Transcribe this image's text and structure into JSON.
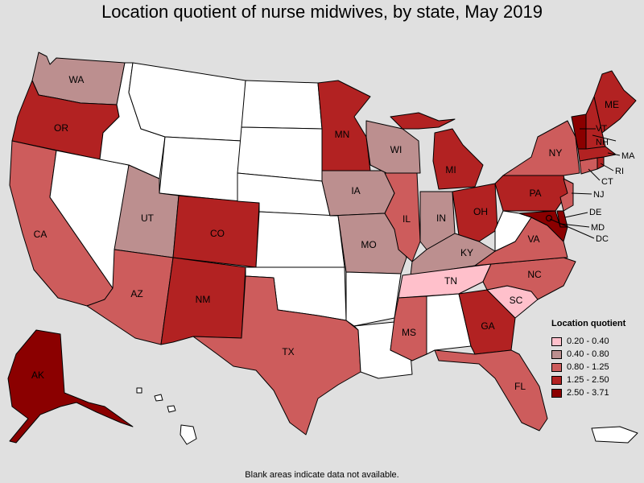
{
  "title": "Location quotient of nurse midwives, by state, May 2019",
  "footnote": "Blank areas indicate data not available.",
  "legend": {
    "title": "Location quotient",
    "classes": [
      {
        "label": "0.20 - 0.40",
        "color": "#ffc0cb"
      },
      {
        "label": "0.40 - 0.80",
        "color": "#bc8f8f"
      },
      {
        "label": "0.80 - 1.25",
        "color": "#cd5c5c"
      },
      {
        "label": "1.25 - 2.50",
        "color": "#b22222"
      },
      {
        "label": "2.50 - 3.71",
        "color": "#8b0000"
      }
    ],
    "blank_color": "#ffffff"
  },
  "states": {
    "WA": {
      "label": "WA",
      "class": 1
    },
    "OR": {
      "label": "OR",
      "class": 3
    },
    "CA": {
      "label": "CA",
      "class": 2
    },
    "NV": {
      "label": "",
      "class": null
    },
    "ID": {
      "label": "",
      "class": null
    },
    "MT": {
      "label": "",
      "class": null
    },
    "WY": {
      "label": "",
      "class": null
    },
    "UT": {
      "label": "UT",
      "class": 1
    },
    "AZ": {
      "label": "AZ",
      "class": 2
    },
    "CO": {
      "label": "CO",
      "class": 3
    },
    "NM": {
      "label": "NM",
      "class": 3
    },
    "ND": {
      "label": "",
      "class": null
    },
    "SD": {
      "label": "",
      "class": null
    },
    "NE": {
      "label": "",
      "class": null
    },
    "KS": {
      "label": "",
      "class": null
    },
    "OK": {
      "label": "",
      "class": null
    },
    "TX": {
      "label": "TX",
      "class": 2
    },
    "MN": {
      "label": "MN",
      "class": 3
    },
    "IA": {
      "label": "IA",
      "class": 1
    },
    "MO": {
      "label": "MO",
      "class": 1
    },
    "AR": {
      "label": "",
      "class": null
    },
    "LA": {
      "label": "",
      "class": null
    },
    "WI": {
      "label": "WI",
      "class": 1
    },
    "IL": {
      "label": "IL",
      "class": 2
    },
    "MI": {
      "label": "MI",
      "class": 3
    },
    "IN": {
      "label": "IN",
      "class": 1
    },
    "OH": {
      "label": "OH",
      "class": 3
    },
    "KY": {
      "label": "KY",
      "class": 1
    },
    "TN": {
      "label": "TN",
      "class": 0
    },
    "MS": {
      "label": "MS",
      "class": 2
    },
    "AL": {
      "label": "",
      "class": null
    },
    "GA": {
      "label": "GA",
      "class": 3
    },
    "FL": {
      "label": "FL",
      "class": 2
    },
    "SC": {
      "label": "SC",
      "class": 0
    },
    "NC": {
      "label": "NC",
      "class": 2
    },
    "VA": {
      "label": "VA",
      "class": 2
    },
    "WV": {
      "label": "",
      "class": null
    },
    "PA": {
      "label": "PA",
      "class": 3
    },
    "NY": {
      "label": "NY",
      "class": 2
    },
    "ME": {
      "label": "ME",
      "class": 3
    },
    "VT": {
      "label": "VT",
      "class": 4
    },
    "NH": {
      "label": "NH",
      "class": 3
    },
    "MA": {
      "label": "MA",
      "class": 3
    },
    "RI": {
      "label": "RI",
      "class": 3
    },
    "CT": {
      "label": "CT",
      "class": 2
    },
    "NJ": {
      "label": "NJ",
      "class": 2
    },
    "DE": {
      "label": "DE",
      "class": 4
    },
    "MD": {
      "label": "MD",
      "class": 4
    },
    "DC": {
      "label": "DC",
      "class": 4
    },
    "AK": {
      "label": "AK",
      "class": 4
    },
    "HI": {
      "label": "",
      "class": null
    },
    "PR": {
      "label": "",
      "class": null
    }
  }
}
